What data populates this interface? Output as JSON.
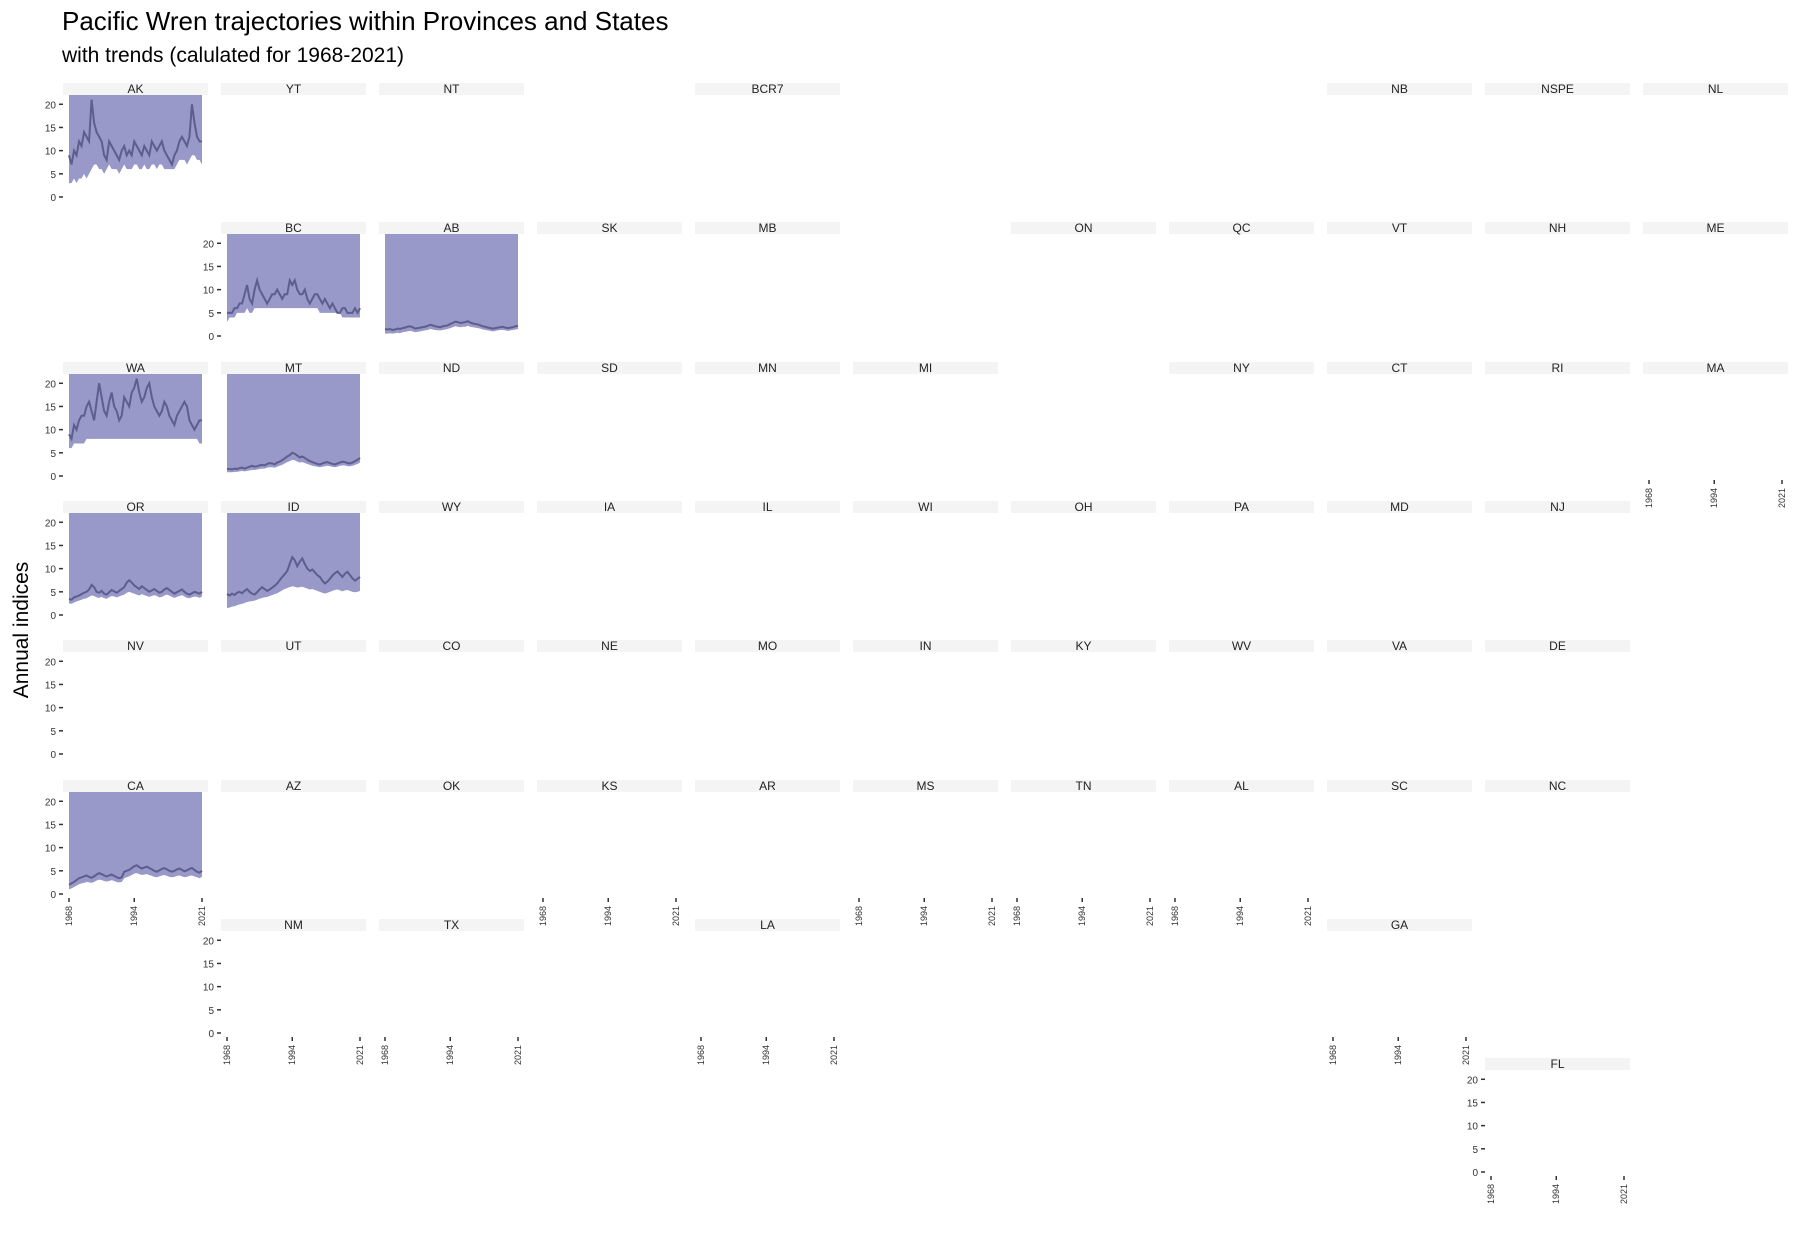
{
  "chart_data": {
    "type": "area",
    "title": "Pacific Wren trajectories within Provinces and States",
    "subtitle": "with trends (calulated for 1968-2021)",
    "ylabel": "Annual indices",
    "xlabel": "",
    "ylim": [
      0,
      22
    ],
    "xlim": [
      1968,
      2021
    ],
    "x_ticks": [
      1968,
      1994,
      2021
    ],
    "y_ticks": [
      0,
      5,
      10,
      15,
      20
    ],
    "grid": false,
    "colors": {
      "band": "#9898c9",
      "line": "#5e5e8e",
      "strip": "#f4f4f4",
      "trend": "#a0a0b8"
    },
    "panel_labels": [
      "AK",
      "YT",
      "NT",
      "BCR7",
      "NB",
      "NSPE",
      "NL",
      "BC",
      "AB",
      "SK",
      "MB",
      "ON",
      "QC",
      "VT",
      "NH",
      "ME",
      "WA",
      "MT",
      "ND",
      "SD",
      "MN",
      "MI",
      "NY",
      "CT",
      "RI",
      "MA",
      "OR",
      "ID",
      "WY",
      "IA",
      "IL",
      "WI",
      "OH",
      "PA",
      "MD",
      "NJ",
      "NV",
      "UT",
      "CO",
      "NE",
      "MO",
      "IN",
      "KY",
      "WV",
      "VA",
      "DE",
      "CA",
      "AZ",
      "OK",
      "KS",
      "AR",
      "MS",
      "TN",
      "AL",
      "SC",
      "NC",
      "NM",
      "TX",
      "LA",
      "GA",
      "FL"
    ],
    "panels_with_data": [
      {
        "label": "AK",
        "index": [
          9,
          7,
          10,
          9,
          12,
          11,
          14,
          13,
          12,
          21,
          16,
          14,
          13,
          12,
          9,
          8,
          12,
          11,
          10,
          9,
          8,
          10,
          11,
          9,
          10,
          9,
          12,
          11,
          10,
          9,
          11,
          10,
          9,
          12,
          11,
          10,
          11,
          12,
          10,
          9,
          8,
          7,
          9,
          10,
          12,
          13,
          12,
          11,
          13,
          20,
          16,
          13,
          12,
          12
        ],
        "lower": [
          3,
          3,
          4,
          3,
          4,
          4,
          5,
          4,
          5,
          6,
          7,
          7,
          6,
          6,
          5,
          6,
          7,
          6,
          6,
          6,
          5,
          6,
          7,
          6,
          6,
          6,
          7,
          7,
          6,
          6,
          7,
          6,
          6,
          7,
          7,
          6,
          7,
          7,
          6,
          6,
          6,
          6,
          6,
          7,
          8,
          8,
          8,
          7,
          8,
          9,
          9,
          8,
          8,
          7
        ]
      },
      {
        "label": "BC",
        "index": [
          5,
          5,
          5,
          6,
          6,
          7,
          7,
          9,
          11,
          8,
          7,
          10,
          12,
          10,
          9,
          8,
          7,
          8,
          9,
          9,
          10,
          9,
          8,
          9,
          9,
          12,
          11,
          12,
          10,
          9,
          9,
          10,
          8,
          7,
          8,
          9,
          9,
          8,
          7,
          8,
          7,
          6,
          7,
          6,
          5,
          5,
          6,
          6,
          5,
          5,
          5,
          6,
          5,
          6
        ],
        "lower": [
          3,
          4,
          4,
          4,
          5,
          5,
          5,
          5,
          6,
          5,
          5,
          6,
          6,
          6,
          6,
          6,
          6,
          6,
          6,
          6,
          6,
          6,
          6,
          6,
          6,
          6,
          6,
          6,
          6,
          6,
          6,
          6,
          6,
          6,
          6,
          6,
          6,
          5,
          5,
          5,
          5,
          5,
          5,
          5,
          5,
          5,
          4,
          4,
          4,
          4,
          4,
          4,
          4,
          4
        ]
      },
      {
        "label": "AB",
        "index": [
          1.5,
          1.4,
          1.5,
          1.3,
          1.4,
          1.6,
          1.5,
          1.7,
          1.8,
          2,
          2.1,
          1.9,
          1.6,
          1.7,
          1.8,
          1.9,
          2,
          2.2,
          2.4,
          2.3,
          2.1,
          2,
          1.9,
          2.1,
          2.2,
          2.3,
          2.6,
          2.8,
          3.1,
          3,
          2.8,
          2.9,
          3,
          3.2,
          2.9,
          2.7,
          2.6,
          2.5,
          2.3,
          2.1,
          2,
          1.8,
          1.7,
          1.6,
          1.7,
          1.8,
          1.9,
          2,
          1.8,
          1.7,
          1.8,
          1.9,
          2.1,
          2.2
        ],
        "lower": [
          0.5,
          0.5,
          0.6,
          0.5,
          0.6,
          0.7,
          0.6,
          0.8,
          0.9,
          1,
          1.1,
          1,
          0.8,
          0.9,
          1,
          1.1,
          1.2,
          1.3,
          1.5,
          1.4,
          1.3,
          1.2,
          1.2,
          1.3,
          1.4,
          1.5,
          1.7,
          1.9,
          2.1,
          2,
          1.9,
          2,
          2,
          2.2,
          2,
          1.9,
          1.8,
          1.7,
          1.6,
          1.4,
          1.3,
          1.2,
          1.1,
          1,
          1.1,
          1.2,
          1.3,
          1.3,
          1.2,
          1.1,
          1.2,
          1.3,
          1.4,
          1.5
        ]
      },
      {
        "label": "WA",
        "index": [
          9,
          8,
          11,
          10,
          12,
          13,
          13,
          15,
          16,
          14,
          12,
          16,
          20,
          17,
          14,
          13,
          16,
          18,
          15,
          14,
          12,
          13,
          17,
          16,
          15,
          18,
          19,
          21,
          18,
          16,
          17,
          19,
          20,
          17,
          15,
          14,
          13,
          14,
          16,
          15,
          13,
          12,
          11,
          13,
          14,
          15,
          16,
          15,
          12,
          11,
          10,
          11,
          12,
          12
        ],
        "lower": [
          6,
          6,
          7,
          7,
          7,
          7,
          7,
          8,
          8,
          8,
          8,
          8,
          8,
          8,
          8,
          8,
          8,
          8,
          8,
          8,
          8,
          8,
          8,
          8,
          8,
          8,
          8,
          8,
          8,
          8,
          8,
          8,
          8,
          8,
          8,
          8,
          8,
          8,
          8,
          8,
          8,
          8,
          8,
          8,
          8,
          8,
          8,
          8,
          8,
          8,
          8,
          8,
          7,
          7
        ]
      },
      {
        "label": "MT",
        "index": [
          1.5,
          1.5,
          1.4,
          1.6,
          1.5,
          1.7,
          1.8,
          1.6,
          1.8,
          2,
          2.2,
          2,
          2.1,
          2.3,
          2.4,
          2.3,
          2.6,
          2.8,
          2.7,
          2.5,
          2.9,
          3.1,
          3.4,
          3.8,
          4.2,
          4.5,
          5,
          4.8,
          4.4,
          4,
          4.2,
          3.9,
          3.5,
          3.2,
          3,
          2.8,
          2.6,
          2.5,
          2.7,
          2.9,
          3,
          2.8,
          2.6,
          2.5,
          2.7,
          2.9,
          3.1,
          3,
          2.8,
          2.7,
          2.9,
          3.2,
          3.5,
          3.9
        ],
        "lower": [
          0.8,
          0.8,
          0.8,
          0.9,
          0.9,
          1,
          1.1,
          1,
          1.1,
          1.2,
          1.3,
          1.3,
          1.4,
          1.5,
          1.6,
          1.6,
          1.8,
          1.9,
          1.9,
          1.8,
          2,
          2.2,
          2.4,
          2.7,
          3,
          3.2,
          3.5,
          3.4,
          3.1,
          2.9,
          3,
          2.8,
          2.6,
          2.4,
          2.2,
          2.1,
          2,
          1.9,
          2,
          2.1,
          2.2,
          2.1,
          2,
          1.9,
          2,
          2.2,
          2.3,
          2.3,
          2.1,
          2.1,
          2.2,
          2.4,
          2.6,
          2.9
        ]
      },
      {
        "label": "OR",
        "index": [
          3.5,
          3.3,
          3.8,
          4,
          4.2,
          4.5,
          4.8,
          5,
          5.5,
          6.5,
          6,
          5,
          4.8,
          5.2,
          4.6,
          4.4,
          4.9,
          5.4,
          5.1,
          4.8,
          5.2,
          5.6,
          6,
          7,
          7.5,
          7,
          6.4,
          6,
          5.6,
          6.2,
          5.8,
          5.4,
          5,
          5.3,
          5.6,
          5.2,
          4.8,
          5,
          5.5,
          5.8,
          5.4,
          5,
          4.6,
          4.9,
          5.2,
          5.5,
          5,
          4.6,
          4.4,
          4.7,
          5,
          4.8,
          4.6,
          5
        ],
        "lower": [
          2.5,
          2.4,
          2.7,
          2.9,
          3.1,
          3.3,
          3.5,
          3.6,
          3.9,
          4.2,
          4.1,
          3.8,
          3.7,
          3.9,
          3.6,
          3.5,
          3.8,
          4.1,
          4,
          3.8,
          4,
          4.2,
          4.4,
          4.8,
          5,
          4.8,
          4.6,
          4.4,
          4.2,
          4.5,
          4.3,
          4.1,
          3.9,
          4.1,
          4.3,
          4.1,
          3.8,
          3.9,
          4.2,
          4.4,
          4.2,
          3.9,
          3.7,
          3.9,
          4.1,
          4.3,
          4,
          3.7,
          3.6,
          3.8,
          4,
          3.9,
          3.7,
          4
        ]
      },
      {
        "label": "ID",
        "index": [
          4.5,
          4.2,
          4.6,
          4.3,
          4.8,
          5,
          4.7,
          5.2,
          5.6,
          5,
          4.6,
          4.4,
          4.9,
          5.5,
          6,
          5.6,
          5.2,
          5.5,
          5.9,
          6.3,
          6.8,
          7.5,
          8.2,
          8.8,
          9.5,
          11,
          12.5,
          11.8,
          10.5,
          11.5,
          12.2,
          11,
          10,
          9.5,
          9.8,
          9.2,
          8.6,
          8.2,
          7.4,
          6.8,
          7.2,
          7.8,
          8.5,
          9,
          9.4,
          8.8,
          8.2,
          8.9,
          9.3,
          8.6,
          7.9,
          7.4,
          7.8,
          8.2
        ],
        "lower": [
          1.5,
          1.6,
          1.8,
          1.9,
          2.1,
          2.3,
          2.4,
          2.6,
          2.8,
          2.9,
          3,
          3.1,
          3.3,
          3.5,
          3.7,
          3.8,
          3.9,
          4.1,
          4.3,
          4.5,
          4.7,
          5,
          5.3,
          5.6,
          5.8,
          6,
          6.2,
          6.1,
          5.9,
          6,
          6.1,
          5.9,
          5.7,
          5.5,
          5.6,
          5.4,
          5.2,
          5,
          4.8,
          4.6,
          4.8,
          5,
          5.2,
          5.4,
          5.5,
          5.3,
          5.1,
          5.3,
          5.4,
          5.2,
          5,
          4.9,
          5,
          5.2
        ]
      },
      {
        "label": "CA",
        "index": [
          2,
          2.3,
          2.6,
          3,
          3.4,
          3.6,
          3.8,
          4,
          3.7,
          3.5,
          3.8,
          4.2,
          4.5,
          4.3,
          4,
          3.8,
          4,
          4.2,
          3.9,
          3.6,
          3.4,
          3.6,
          4.8,
          5,
          5.2,
          5.6,
          6,
          6.2,
          5.8,
          5.5,
          5.7,
          5.9,
          5.6,
          5.3,
          5,
          4.8,
          5.1,
          5.4,
          5.6,
          5.3,
          5,
          4.8,
          5,
          5.3,
          5.5,
          5.2,
          4.9,
          5.1,
          5.4,
          5.6,
          5.2,
          4.8,
          4.6,
          5
        ],
        "lower": [
          1,
          1.2,
          1.5,
          1.8,
          2.1,
          2.3,
          2.4,
          2.6,
          2.5,
          2.4,
          2.6,
          2.9,
          3.1,
          3,
          2.8,
          2.7,
          2.8,
          3,
          2.8,
          2.6,
          2.5,
          2.6,
          3.4,
          3.6,
          3.8,
          4.1,
          4.4,
          4.5,
          4.3,
          4.1,
          4.2,
          4.3,
          4.1,
          3.9,
          3.7,
          3.6,
          3.8,
          4,
          4.1,
          3.9,
          3.7,
          3.6,
          3.7,
          3.9,
          4,
          3.8,
          3.6,
          3.7,
          3.9,
          4,
          3.8,
          3.6,
          3.4,
          3.7
        ]
      }
    ]
  }
}
